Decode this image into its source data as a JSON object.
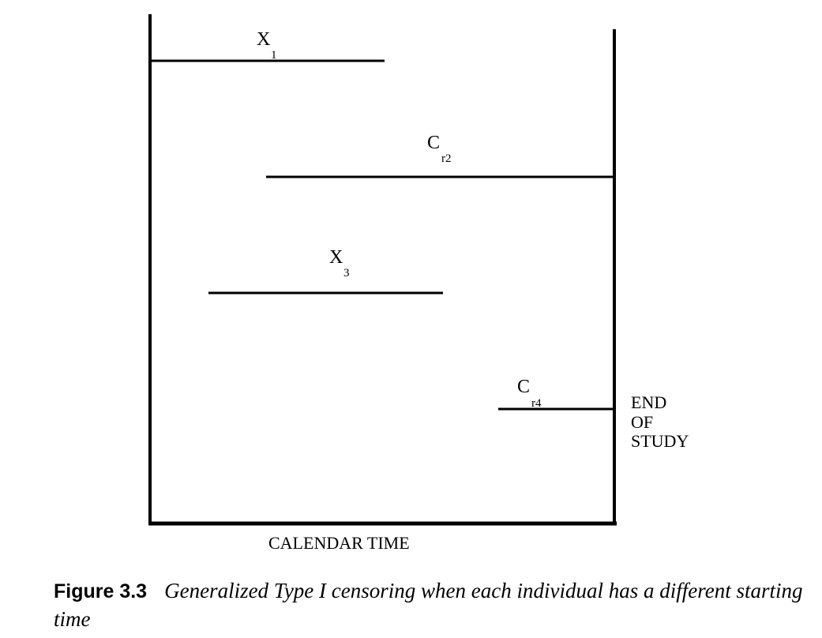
{
  "diagram": {
    "events": [
      {
        "symbol": "X",
        "subscript": "1"
      },
      {
        "symbol": "C",
        "subscript": "r2"
      },
      {
        "symbol": "X",
        "subscript": "3"
      },
      {
        "symbol": "C",
        "subscript": "r4"
      }
    ],
    "end_of_study_lines": [
      "END",
      "OF",
      "STUDY"
    ],
    "axis_label": "CALENDAR TIME"
  },
  "caption": {
    "number": "Figure 3.3",
    "text": "Generalized Type I censoring when each individual has a different starting time"
  }
}
